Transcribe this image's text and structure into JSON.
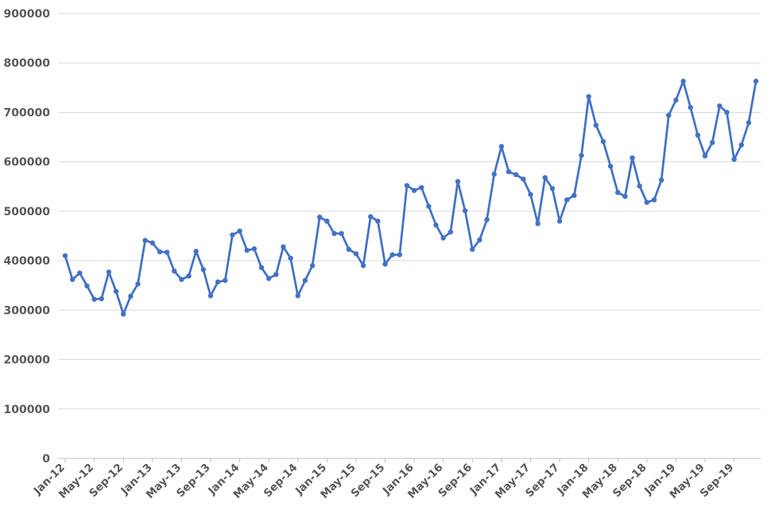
{
  "chart_data": {
    "type": "line",
    "title": "",
    "xlabel": "",
    "ylabel": "",
    "ylim": [
      0,
      900000
    ],
    "yticks": [
      "0",
      "100000",
      "200000",
      "300000",
      "400000",
      "500000",
      "600000",
      "700000",
      "800000",
      "900000"
    ],
    "xtick_labels": [
      "Jan-12",
      "May-12",
      "Sep-12",
      "Jan-13",
      "May-13",
      "Sep-13",
      "Jan-14",
      "May-14",
      "Sep-14",
      "Jan-15",
      "May-15",
      "Sep-15",
      "Jan-16",
      "May-16",
      "Sep-16",
      "Jan-17",
      "May-17",
      "Sep-17",
      "Jan-18",
      "May-18",
      "Sep-18",
      "Jan-19",
      "May-19",
      "Sep-19"
    ],
    "grid": true,
    "legend": "none",
    "x_start": "Jan-12",
    "x_end": "Dec-19",
    "series": [
      {
        "color": "#4472C4",
        "values": [
          410000,
          362000,
          375000,
          349000,
          322000,
          323000,
          377000,
          338000,
          292000,
          328000,
          353000,
          441000,
          436000,
          418000,
          417000,
          379000,
          362000,
          369000,
          419000,
          382000,
          329000,
          357000,
          360000,
          452000,
          460000,
          421000,
          424000,
          386000,
          364000,
          372000,
          428000,
          405000,
          329000,
          360000,
          390000,
          488000,
          480000,
          455000,
          455000,
          423000,
          414000,
          390000,
          489000,
          480000,
          393000,
          412000,
          412000,
          552000,
          542000,
          548000,
          510000,
          472000,
          446000,
          458000,
          560000,
          501000,
          423000,
          442000,
          483000,
          575000,
          631000,
          580000,
          574000,
          565000,
          534000,
          475000,
          568000,
          546000,
          480000,
          523000,
          532000,
          613000,
          732000,
          674000,
          641000,
          591000,
          538000,
          530000,
          608000,
          551000,
          518000,
          523000,
          563000,
          694000,
          725000,
          763000,
          710000,
          654000,
          612000,
          639000,
          713000,
          700000,
          605000,
          634000,
          679000,
          763000
        ]
      }
    ]
  }
}
